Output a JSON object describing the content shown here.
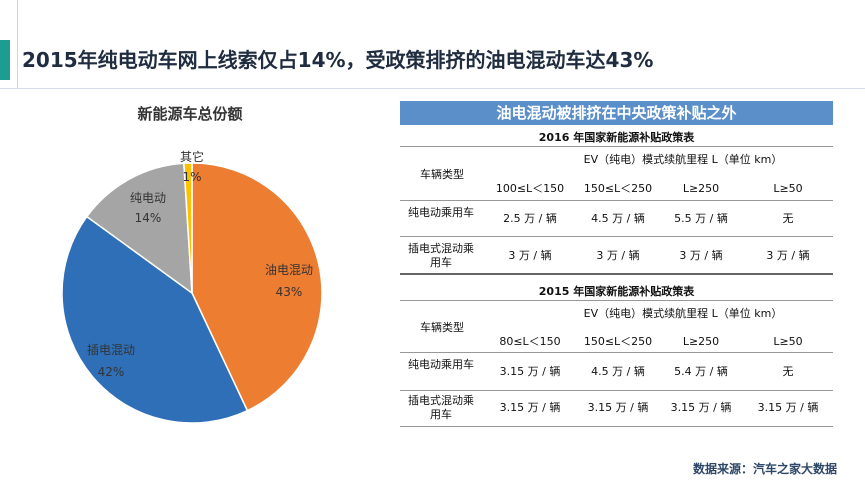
{
  "title": "2015年纯电动车网上线索仅占14%，受政策排挤的油电混动车达43%",
  "colors": {
    "accent": "#1e9c92",
    "header_bg": "#5b8fc9",
    "hybrid": "#ed7d31",
    "plugin": "#2e6fb7",
    "pure_ev": "#a5a5a5",
    "other": "#ffc000"
  },
  "chart_data": {
    "type": "pie",
    "title": "新能源车总份额",
    "slices": [
      {
        "label": "油电混动",
        "value": 43,
        "pct": "43%"
      },
      {
        "label": "插电混动",
        "value": 42,
        "pct": "42%"
      },
      {
        "label": "纯电动",
        "value": 14,
        "pct": "14%"
      },
      {
        "label": "其它",
        "value": 1,
        "pct": "1%"
      }
    ]
  },
  "policy": {
    "header": "油电混动被排挤在中央政策补贴之外",
    "tables": [
      {
        "title": "2016  年国家新能源补贴政策表",
        "type_label": "车辆类型",
        "range_label": "EV（纯电）模式续航里程  L（单位 km）",
        "ranges": [
          "100≤L＜150",
          "150≤L＜250",
          "L≥250",
          "L≥50"
        ],
        "rows": [
          {
            "label": "纯电动乘用车",
            "values": [
              "2.5 万 / 辆",
              "4.5 万 / 辆",
              "5.5 万 / 辆",
              "无"
            ]
          },
          {
            "label": "插电式混动乘用车",
            "values": [
              "3 万 / 辆",
              "3 万 / 辆",
              "3 万 / 辆",
              "3 万 / 辆"
            ]
          }
        ]
      },
      {
        "title": "2015  年国家新能源补贴政策表",
        "type_label": "车辆类型",
        "range_label": "EV（纯电）模式续航里程  L（单位 km）",
        "ranges": [
          "80≤L＜150",
          "150≤L＜250",
          "L≥250",
          "L≥50"
        ],
        "rows": [
          {
            "label": "纯电动乘用车",
            "values": [
              "3.15 万 / 辆",
              "4.5 万 / 辆",
              "5.4 万 / 辆",
              "无"
            ]
          },
          {
            "label": "插电式混动乘用车",
            "values": [
              "3.15 万 / 辆",
              "3.15 万 / 辆",
              "3.15 万 / 辆",
              "3.15 万 / 辆"
            ]
          }
        ]
      }
    ]
  },
  "source": "数据来源：汽车之家大数据"
}
